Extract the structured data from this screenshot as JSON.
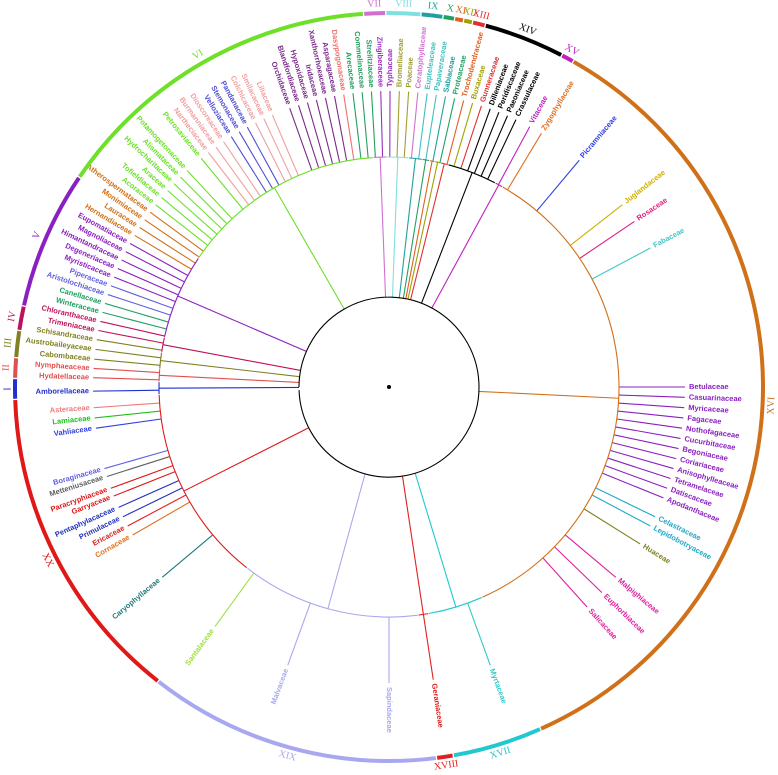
{
  "figure": {
    "center": "root",
    "clades": [
      {
        "label": "I",
        "color": "#1f2fd0",
        "a0": 178.2,
        "a1": 181.2
      },
      {
        "label": "II",
        "color": "#e05050",
        "a0": 181.4,
        "a1": 184.4
      },
      {
        "label": "III",
        "color": "#808020",
        "a0": 184.6,
        "a1": 188.6
      },
      {
        "label": "IV",
        "color": "#c0105a",
        "a0": 188.8,
        "a1": 192.4
      },
      {
        "label": "V",
        "color": "#8a20c0",
        "a0": 192.6,
        "a1": 214.0
      },
      {
        "label": "VI",
        "color": "#6ee02a",
        "a0": 214.2,
        "a1": 266.0
      },
      {
        "label": "VII",
        "color": "#d070d0",
        "a0": 266.2,
        "a1": 269.4
      },
      {
        "label": "VIII",
        "color": "#80e0e0",
        "a0": 269.6,
        "a1": 274.8
      },
      {
        "label": "IX",
        "color": "#20a0a0",
        "a0": 275.0,
        "a1": 278.2
      },
      {
        "label": "X",
        "color": "#20a060",
        "a0": 278.4,
        "a1": 280.0
      },
      {
        "label": "XI",
        "color": "#e06020",
        "a0": 280.2,
        "a1": 281.4
      },
      {
        "label": "XII",
        "color": "#a0a000",
        "a0": 281.6,
        "a1": 282.8
      },
      {
        "label": "XIII",
        "color": "#e03030",
        "a0": 283.0,
        "a1": 284.8
      },
      {
        "label": "XIV",
        "color": "#000000",
        "a0": 285.0,
        "a1": 297.4
      },
      {
        "label": "XV",
        "color": "#c020c0",
        "a0": 297.6,
        "a1": 299.4
      },
      {
        "label": "XVI",
        "color": "#d07018",
        "a0": 299.6,
        "a1": 426.0
      },
      {
        "label": "XVII",
        "color": "#20c8d0",
        "a0": 426.2,
        "a1": 440.0
      },
      {
        "label": "XVIII",
        "color": "#e02020",
        "a0": 440.2,
        "a1": 442.6
      },
      {
        "label": "XIX",
        "color": "#a8a8f0",
        "a0": 442.8,
        "a1": 488.0
      },
      {
        "label": "XX",
        "color": "#e01818",
        "a0": 488.2,
        "a1": 538.0
      }
    ],
    "labelled_families": [
      {
        "name": "Amborellaceae",
        "color": "#1f2fd0",
        "angle": 179.2
      },
      {
        "name": "Hydatellaceae",
        "color": "#e05050",
        "angle": 181.8
      },
      {
        "name": "Nymphaeaceae",
        "color": "#e05050",
        "angle": 183.6
      },
      {
        "name": "Cabombaceae",
        "color": "#808020",
        "angle": 185.4
      },
      {
        "name": "Austrobaileyaceae",
        "color": "#808020",
        "angle": 187.3
      },
      {
        "name": "Schisandraceae",
        "color": "#808020",
        "angle": 189.2
      },
      {
        "name": "Trimeniaceae",
        "color": "#c0105a",
        "angle": 191.0
      },
      {
        "name": "Chloranthaceae",
        "color": "#c0105a",
        "angle": 192.8
      },
      {
        "name": "Winteraceae",
        "color": "#20a060",
        "angle": 194.6
      },
      {
        "name": "Canellaceae",
        "color": "#20a060",
        "angle": 196.4
      },
      {
        "name": "Aristolochiaceae",
        "color": "#6060e0",
        "angle": 198.2
      },
      {
        "name": "Piperaceae",
        "color": "#6060e0",
        "angle": 200.0
      },
      {
        "name": "Myristicaceae",
        "color": "#8a20c0",
        "angle": 201.8
      },
      {
        "name": "Degeneriaceae",
        "color": "#8a20c0",
        "angle": 203.6
      },
      {
        "name": "Himantandraceae",
        "color": "#8a20c0",
        "angle": 205.4
      },
      {
        "name": "Magnoliaceae",
        "color": "#8a20c0",
        "angle": 207.2
      },
      {
        "name": "Eupomatiaceae",
        "color": "#8a20c0",
        "angle": 209.0
      },
      {
        "name": "Hernandiaceae",
        "color": "#d07018",
        "angle": 210.8
      },
      {
        "name": "Lauraceae",
        "color": "#d07018",
        "angle": 212.6
      },
      {
        "name": "Monimiaceae",
        "color": "#d07018",
        "angle": 214.4
      },
      {
        "name": "Atherospermataceae",
        "color": "#d07018",
        "angle": 216.2
      },
      {
        "name": "Acoraceae",
        "color": "#6ee02a",
        "angle": 218.0
      },
      {
        "name": "Tofieldiaceae",
        "color": "#6ee02a",
        "angle": 219.8
      },
      {
        "name": "Araceae",
        "color": "#6ee02a",
        "angle": 221.6
      },
      {
        "name": "Hydrocharitaceae",
        "color": "#6ee02a",
        "angle": 223.4
      },
      {
        "name": "Alismataceae",
        "color": "#6ee02a",
        "angle": 225.2
      },
      {
        "name": "Potamogetonaceae",
        "color": "#6ee02a",
        "angle": 227.0
      },
      {
        "name": "Petrosaviaceae",
        "color": "#6ee02a",
        "angle": 230.6
      },
      {
        "name": "Nartheciaceae",
        "color": "#f0a0a0",
        "angle": 232.4
      },
      {
        "name": "Burmanniaceae",
        "color": "#f0a0a0",
        "angle": 234.2
      },
      {
        "name": "Dioscoreaceae",
        "color": "#f0a0a0",
        "angle": 236.0
      },
      {
        "name": "Velloziaceae",
        "color": "#5050d0",
        "angle": 237.8
      },
      {
        "name": "Stemonaceae",
        "color": "#5050d0",
        "angle": 239.6
      },
      {
        "name": "Pandanaceae",
        "color": "#5050d0",
        "angle": 241.4
      },
      {
        "name": "Colchicaceae",
        "color": "#f0a0a0",
        "angle": 243.2
      },
      {
        "name": "Smilacaceae",
        "color": "#f0a0a0",
        "angle": 245.0
      },
      {
        "name": "Liliaceae",
        "color": "#f0a0a0",
        "angle": 246.8
      },
      {
        "name": "Orchidaceae",
        "color": "#7a2a8a",
        "angle": 250.4
      },
      {
        "name": "Blandfordiaceae",
        "color": "#7a2a8a",
        "angle": 252.2
      },
      {
        "name": "Hypoxidaceae",
        "color": "#7a2a8a",
        "angle": 254.0
      },
      {
        "name": "Iridaceae",
        "color": "#7a2a8a",
        "angle": 255.8
      },
      {
        "name": "Xanthorrhoeaceae",
        "color": "#7a2a8a",
        "angle": 257.6
      },
      {
        "name": "Asparagaceae",
        "color": "#7a2a8a",
        "angle": 259.4
      },
      {
        "name": "Dasypogonaceae",
        "color": "#f07070",
        "angle": 261.2
      },
      {
        "name": "Arecaceae",
        "color": "#20a060",
        "angle": 263.0
      },
      {
        "name": "Commelinaceae",
        "color": "#20a060",
        "angle": 264.8
      },
      {
        "name": "Strelitziaceae",
        "color": "#20a060",
        "angle": 266.6
      },
      {
        "name": "Zingiberaceae",
        "color": "#9a30c0",
        "angle": 268.4
      },
      {
        "name": "Typhaceae",
        "color": "#9a30c0",
        "angle": 270.2
      },
      {
        "name": "Bromeliaceae",
        "color": "#a0a030",
        "angle": 272.0
      },
      {
        "name": "Poaceae",
        "color": "#a0a030",
        "angle": 273.8
      },
      {
        "name": "Ceratophyllaceae",
        "color": "#d070d0",
        "angle": 275.6
      },
      {
        "name": "Eupteleaceae",
        "color": "#40c0c0",
        "angle": 277.4
      },
      {
        "name": "Papaveraceae",
        "color": "#40c0c0",
        "angle": 279.2
      },
      {
        "name": "Sabiaceae",
        "color": "#20a0a0",
        "angle": 281.0
      },
      {
        "name": "Proteaceae",
        "color": "#20a060",
        "angle": 282.8
      },
      {
        "name": "Trochodendraceae",
        "color": "#e06020",
        "angle": 284.6
      },
      {
        "name": "Buxaceae",
        "color": "#a0a000",
        "angle": 286.4
      },
      {
        "name": "Gunneraceae",
        "color": "#e03030",
        "angle": 288.2
      },
      {
        "name": "Dilleniaceae",
        "color": "#000000",
        "angle": 290.0
      },
      {
        "name": "Peridiscaceae",
        "color": "#000000",
        "angle": 291.8
      },
      {
        "name": "Paeoniaceae",
        "color": "#000000",
        "angle": 293.6
      },
      {
        "name": "Crassulaceae",
        "color": "#000000",
        "angle": 295.4
      },
      {
        "name": "Vitaceae",
        "color": "#c020c0",
        "angle": 298.4
      },
      {
        "name": "Zygophyllaceae",
        "color": "#e07020",
        "angle": 301.0
      },
      {
        "name": "Picramniaceae",
        "color": "#2f3fe0",
        "angle": 310.0
      },
      {
        "name": "Juglandaceae",
        "color": "#d0b000",
        "angle": 322.0
      },
      {
        "name": "Rosaceae",
        "color": "#e02080",
        "angle": 326.0
      },
      {
        "name": "Fabaceae",
        "color": "#40c8c8",
        "angle": 332.0
      },
      {
        "name": "Betulaceae",
        "color": "#8a20c0",
        "angle": 360.0
      },
      {
        "name": "Casuarinaceae",
        "color": "#8a20c0",
        "angle": 362.0
      },
      {
        "name": "Myricaceae",
        "color": "#8a20c0",
        "angle": 364.0
      },
      {
        "name": "Fagaceae",
        "color": "#8a20c0",
        "angle": 366.0
      },
      {
        "name": "Nothofagaceae",
        "color": "#8a20c0",
        "angle": 368.0
      },
      {
        "name": "Cucurbitaceae",
        "color": "#8a20c0",
        "angle": 370.0
      },
      {
        "name": "Begoniaceae",
        "color": "#8a20c0",
        "angle": 372.0
      },
      {
        "name": "Coriariaceae",
        "color": "#8a20c0",
        "angle": 374.0
      },
      {
        "name": "Anisophylleaceae",
        "color": "#8a20c0",
        "angle": 376.0
      },
      {
        "name": "Tetramelaceae",
        "color": "#8a20c0",
        "angle": 378.0
      },
      {
        "name": "Datiscaceae",
        "color": "#8a20c0",
        "angle": 380.0
      },
      {
        "name": "Apodanthaceae",
        "color": "#8a20c0",
        "angle": 382.0
      },
      {
        "name": "Celastraceae",
        "color": "#20a8c8",
        "angle": 386.0
      },
      {
        "name": "Lepidobotryaceae",
        "color": "#20a8c8",
        "angle": 388.0
      },
      {
        "name": "Huaceae",
        "color": "#808020",
        "angle": 392.0
      },
      {
        "name": "Malpighiaceae",
        "color": "#e020a0",
        "angle": 400.0
      },
      {
        "name": "Euphorbiaceae",
        "color": "#e020a0",
        "angle": 404.0
      },
      {
        "name": "Salicaceae",
        "color": "#e020a0",
        "angle": 408.0
      },
      {
        "name": "Myrtaceae",
        "color": "#30c8c8",
        "angle": 430.0
      },
      {
        "name": "Geraniaceae",
        "color": "#e02020",
        "angle": 441.4
      },
      {
        "name": "Sapindaceae",
        "color": "#a8a8f0",
        "angle": 450.0
      },
      {
        "name": "Malvaceae",
        "color": "#a8a8f0",
        "angle": 470.0
      },
      {
        "name": "Santalaceae",
        "color": "#a0e040",
        "angle": 486.0
      },
      {
        "name": "Caryophyllaceae",
        "color": "#207878",
        "angle": 500.0
      },
      {
        "name": "Cornaceae",
        "color": "#e07020",
        "angle": 510.0
      },
      {
        "name": "Ericaceae",
        "color": "#e02020",
        "angle": 512.0
      },
      {
        "name": "Primulaceae",
        "color": "#2030c0",
        "angle": 514.0
      },
      {
        "name": "Pentaphylacaceae",
        "color": "#2030c0",
        "angle": 516.0
      },
      {
        "name": "Garryaceae",
        "color": "#e01818",
        "angle": 518.4
      },
      {
        "name": "Paracryphiaceae",
        "color": "#e01818",
        "angle": 520.0
      },
      {
        "name": "Metteniusaceae",
        "color": "#606060",
        "angle": 522.4
      },
      {
        "name": "Boraginaceae",
        "color": "#6060e0",
        "angle": 524.0
      },
      {
        "name": "Vahliaceae",
        "color": "#2f3fe0",
        "angle": 532.0
      },
      {
        "name": "Lamiaceae",
        "color": "#20c020",
        "angle": 534.0
      },
      {
        "name": "Asteraceae",
        "color": "#f07a7a",
        "angle": 536.0
      }
    ]
  }
}
